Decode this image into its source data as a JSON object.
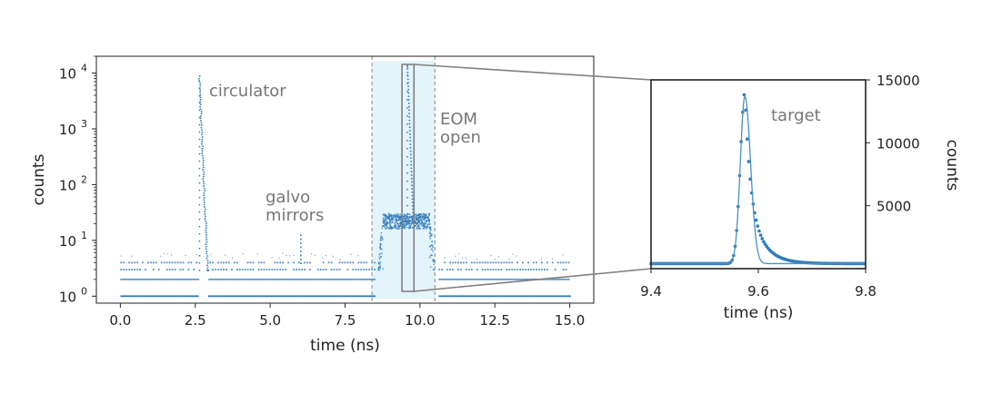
{
  "chart_data": [
    {
      "type": "scatter",
      "id": "left-panel",
      "xlabel": "time (ns)",
      "ylabel": "counts",
      "xlim": [
        -0.8,
        15.8
      ],
      "ylim": [
        0.75,
        20000
      ],
      "yscale": "log",
      "xticks": [
        0.0,
        2.5,
        5.0,
        7.5,
        10.0,
        12.5,
        15.0
      ],
      "xtick_labels": [
        "0.0",
        "2.5",
        "5.0",
        "7.5",
        "10.0",
        "12.5",
        "15.0"
      ],
      "yticks": [
        1,
        10,
        100,
        1000,
        10000
      ],
      "ytick_labels": [
        {
          "base": "10",
          "exp": "0"
        },
        {
          "base": "10",
          "exp": "1"
        },
        {
          "base": "10",
          "exp": "2"
        },
        {
          "base": "10",
          "exp": "3"
        },
        {
          "base": "10",
          "exp": "4"
        }
      ],
      "series_color": "#2f7bbd",
      "baseline_levels": [
        1,
        2,
        3,
        4
      ],
      "gaps": [
        [
          2.6,
          2.9
        ],
        [
          8.5,
          10.6
        ]
      ],
      "peaks": [
        {
          "x": 2.65,
          "peak": 9000
        },
        {
          "x": 6.0,
          "peak": 15
        },
        {
          "x": 9.58,
          "peak": 14000
        }
      ],
      "eom_window": {
        "x_start": 8.4,
        "x_end": 10.5,
        "plateau": 22,
        "shade": "#e3f4fa",
        "line_color": "#999999"
      },
      "zoom_box": {
        "x": [
          9.4,
          9.8
        ],
        "y": [
          1,
          15000
        ],
        "color": "#808080"
      },
      "annotations": [
        {
          "text": "circulator"
        },
        {
          "text": "galvo"
        },
        {
          "text": "mirrors"
        },
        {
          "text": "EOM"
        },
        {
          "text": "open"
        }
      ]
    },
    {
      "type": "scatter",
      "id": "right-panel",
      "xlabel": "time (ns)",
      "ylabel": "counts",
      "xlim": [
        9.4,
        9.8
      ],
      "ylim": [
        0,
        15000
      ],
      "xticks": [
        9.4,
        9.6,
        9.8
      ],
      "xtick_labels": [
        "9.4",
        "9.6",
        "9.8"
      ],
      "yticks": [
        5000,
        10000,
        15000
      ],
      "ytick_labels": [
        "5000",
        "10000",
        "15000"
      ],
      "y_axis_side": "right",
      "series_color": "#2f7bbd",
      "fit_color": "#4a90c2",
      "peak": {
        "x": 9.575,
        "y": 13600,
        "baseline": 400
      },
      "annotations": [
        {
          "text": "target"
        }
      ]
    }
  ]
}
